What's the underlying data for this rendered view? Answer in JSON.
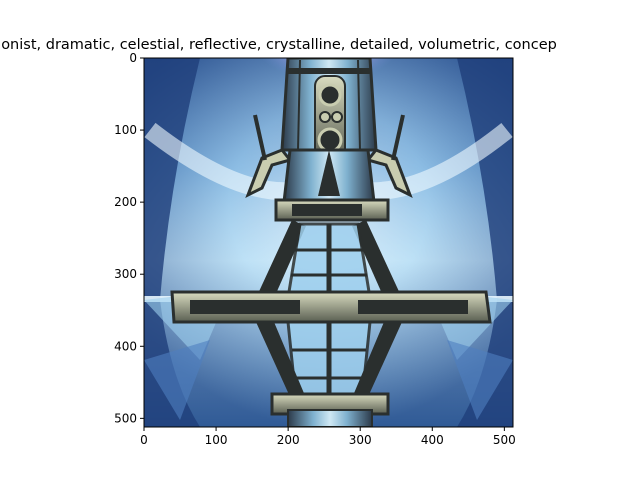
{
  "figure": {
    "title": "honist,  dramatic, celestial, reflective, crystalline, detailed, volumetric, concep",
    "image_subject": "symmetric-crystalline-tower",
    "image_palette": {
      "sky_deep": "#1f3f7a",
      "sky_mid": "#4f7fbf",
      "glow": "#e8f6ff",
      "ice": "#9fd0ee",
      "metal_dark": "#2a2f2e",
      "metal_light": "#c9cdb0",
      "nebula": "#c7b8f0"
    },
    "axes": {
      "x_ticks": [
        "0",
        "100",
        "200",
        "300",
        "400",
        "500"
      ],
      "y_ticks": [
        "0",
        "100",
        "200",
        "300",
        "400",
        "500"
      ],
      "x_values": [
        0,
        100,
        200,
        300,
        400,
        500
      ],
      "y_values": [
        0,
        100,
        200,
        300,
        400,
        500
      ],
      "xlim": [
        0,
        512
      ],
      "ylim": [
        512,
        0
      ]
    }
  }
}
